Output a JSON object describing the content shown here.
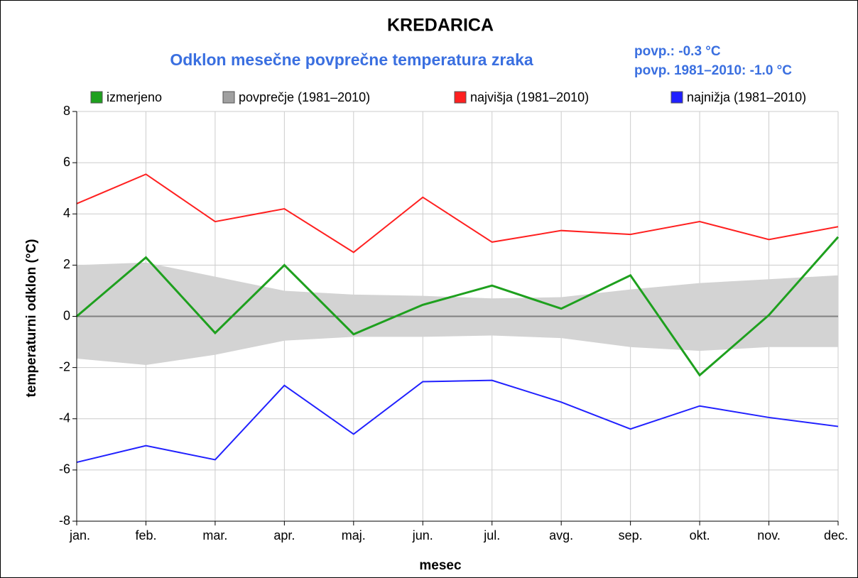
{
  "chart_data": {
    "type": "line",
    "title": "KREDARICA",
    "subtitle": "Odklon mesečne povprečne temperatura zraka",
    "annotations": [
      "povp.: -0.3 °C",
      "povp. 1981–2010: -1.0 °C"
    ],
    "xlabel": "mesec",
    "ylabel": "temperaturni odklon (°C)",
    "categories": [
      "jan.",
      "feb.",
      "mar.",
      "apr.",
      "maj.",
      "jun.",
      "jul.",
      "avg.",
      "sep.",
      "okt.",
      "nov.",
      "dec."
    ],
    "ylim": [
      -8,
      8
    ],
    "yticks": [
      -8,
      -6,
      -4,
      -2,
      0,
      2,
      4,
      6,
      8
    ],
    "grid": true,
    "series": [
      {
        "name": "izmerjeno",
        "color": "#1ea01e",
        "values": [
          0,
          2.3,
          -0.65,
          2.0,
          -0.7,
          0.45,
          1.2,
          0.3,
          1.6,
          -2.3,
          0.05,
          3.1
        ]
      },
      {
        "name": "povprečje (1981–2010)",
        "color": "#a0a0a0",
        "high": [
          2.0,
          2.1,
          1.55,
          1.0,
          0.85,
          0.8,
          0.7,
          0.75,
          1.05,
          1.3,
          1.45,
          1.6
        ],
        "low": [
          -1.65,
          -1.9,
          -1.5,
          -0.95,
          -0.8,
          -0.8,
          -0.75,
          -0.85,
          -1.2,
          -1.35,
          -1.2,
          -1.2
        ]
      },
      {
        "name": "najvišja (1981–2010)",
        "color": "#ff2020",
        "values": [
          4.4,
          5.55,
          3.7,
          4.2,
          2.5,
          4.65,
          2.9,
          3.35,
          3.2,
          3.7,
          3.0,
          3.5
        ]
      },
      {
        "name": "najnižja (1981–2010)",
        "color": "#2020ff",
        "values": [
          -5.7,
          -5.05,
          -5.6,
          -2.7,
          -4.6,
          -2.55,
          -2.5,
          -3.35,
          -4.4,
          -3.5,
          -3.95,
          -4.3
        ]
      }
    ]
  }
}
